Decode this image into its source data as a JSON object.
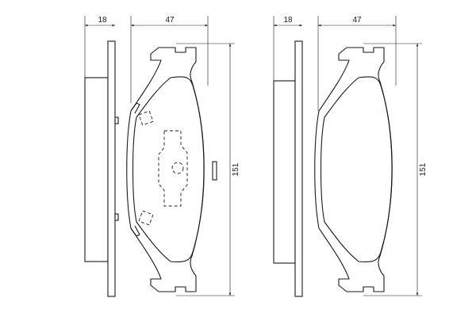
{
  "left_view": {
    "dim_thickness": "18",
    "dim_width": "47",
    "dim_height": "151"
  },
  "right_view": {
    "dim_thickness": "18",
    "dim_width": "47",
    "dim_height": "151"
  }
}
